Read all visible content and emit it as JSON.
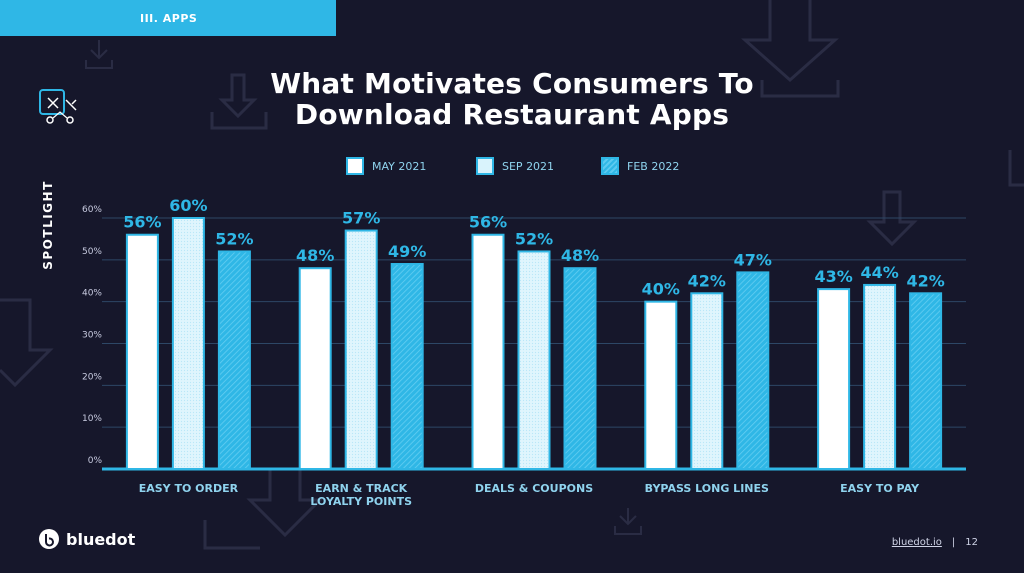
{
  "header": {
    "section": "III. APPS",
    "title_line1": "What Motivates Consumers To",
    "title_line2": "Download Restaurant Apps",
    "sidebar_label": "SPOTLIGHT"
  },
  "colors": {
    "background": "#16172b",
    "accent": "#2fb7e6",
    "series_may": "#ffffff",
    "series_sep": "#d9f3fc",
    "series_feb": "#2fb7e6"
  },
  "icons": [
    "spotlight-arrows-icon",
    "download-arrow-icon",
    "bluedot-logo-icon"
  ],
  "chart_data": {
    "type": "bar",
    "title": "What Motivates Consumers To Download Restaurant Apps",
    "categories": [
      "EASY TO ORDER",
      "EARN & TRACK LOYALTY POINTS",
      "DEALS & COUPONS",
      "BYPASS LONG LINES",
      "EASY TO PAY"
    ],
    "category_lines": [
      [
        "EASY TO ORDER"
      ],
      [
        "EARN & TRACK",
        "LOYALTY POINTS"
      ],
      [
        "DEALS & COUPONS"
      ],
      [
        "BYPASS LONG LINES"
      ],
      [
        "EASY TO PAY"
      ]
    ],
    "series": [
      {
        "name": "MAY 2021",
        "values": [
          56,
          48,
          56,
          40,
          43
        ]
      },
      {
        "name": "SEP 2021",
        "values": [
          60,
          57,
          52,
          42,
          44
        ]
      },
      {
        "name": "FEB 2022",
        "values": [
          52,
          49,
          48,
          47,
          42
        ]
      }
    ],
    "value_suffix": "%",
    "yticks": [
      "0%",
      "10%",
      "20%",
      "30%",
      "40%",
      "50%",
      "60%"
    ],
    "ylim": [
      0,
      60
    ],
    "grid": true,
    "legend_position": "top-center"
  },
  "footer": {
    "logo_text": "bluedot",
    "link": "bluedot.io",
    "separator": "|",
    "page": "12"
  }
}
